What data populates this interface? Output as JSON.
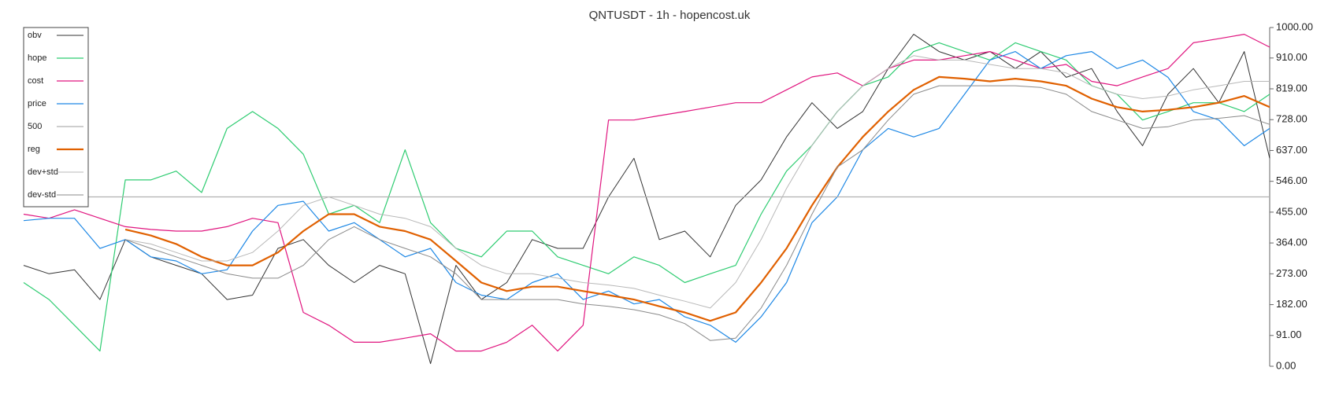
{
  "chart_data": {
    "type": "line",
    "title": "QNTUSDT - 1h - hopencost.uk",
    "ylim": [
      0,
      1000
    ],
    "yticks": [
      {
        "value": 0,
        "label": "0.00"
      },
      {
        "value": 91,
        "label": "91.00"
      },
      {
        "value": 182,
        "label": "182.00"
      },
      {
        "value": 273,
        "label": "273.00"
      },
      {
        "value": 364,
        "label": "364.00"
      },
      {
        "value": 455,
        "label": "455.00"
      },
      {
        "value": 546,
        "label": "546.00"
      },
      {
        "value": 637,
        "label": "637.00"
      },
      {
        "value": 728,
        "label": "728.00"
      },
      {
        "value": 819,
        "label": "819.00"
      },
      {
        "value": 910,
        "label": "910.00"
      },
      {
        "value": 1000,
        "label": "1000.00"
      }
    ],
    "legend": "upper left",
    "series": [
      {
        "name": "obv",
        "color": "#333333",
        "values": [
          298,
          273,
          285,
          197,
          374,
          323,
          298,
          273,
          197,
          210,
          348,
          374,
          298,
          247,
          298,
          273,
          8,
          298,
          197,
          247,
          374,
          348,
          348,
          500,
          614,
          374,
          399,
          323,
          475,
          550,
          677,
          778,
          702,
          752,
          879,
          980,
          929,
          904,
          929,
          879,
          929,
          853,
          879,
          752,
          651,
          803,
          879,
          778,
          929,
          614
        ]
      },
      {
        "name": "hope",
        "color": "#2ecc71",
        "values": [
          247,
          197,
          121,
          45,
          550,
          550,
          576,
          513,
          702,
          752,
          702,
          626,
          449,
          475,
          424,
          639,
          424,
          348,
          323,
          399,
          399,
          323,
          298,
          273,
          323,
          298,
          247,
          273,
          298,
          449,
          576,
          652,
          752,
          828,
          854,
          929,
          955,
          929,
          904,
          955,
          929,
          904,
          828,
          803,
          727,
          752,
          778,
          778,
          752,
          803
        ]
      },
      {
        "name": "cost",
        "color": "#e0157f",
        "values": [
          449,
          437,
          462,
          437,
          412,
          404,
          399,
          399,
          412,
          437,
          424,
          159,
          121,
          71,
          71,
          83,
          96,
          45,
          45,
          71,
          121,
          45,
          121,
          727,
          727,
          740,
          752,
          765,
          778,
          778,
          816,
          854,
          866,
          828,
          879,
          904,
          904,
          917,
          929,
          904,
          879,
          891,
          841,
          828,
          854,
          879,
          955,
          967,
          980,
          942
        ]
      },
      {
        "name": "price",
        "color": "#1e88e5",
        "values": [
          430,
          437,
          437,
          348,
          374,
          323,
          311,
          273,
          285,
          399,
          475,
          487,
          399,
          424,
          374,
          323,
          348,
          247,
          210,
          197,
          247,
          273,
          197,
          222,
          184,
          197,
          146,
          121,
          71,
          146,
          247,
          424,
          500,
          639,
          702,
          677,
          702,
          803,
          904,
          929,
          879,
          917,
          929,
          879,
          904,
          853,
          752,
          727,
          651,
          702
        ]
      },
      {
        "name": "500",
        "color": "#b0b0b0",
        "values": [
          500,
          500,
          500,
          500,
          500,
          500,
          500,
          500,
          500,
          500,
          500,
          500,
          500,
          500,
          500,
          500,
          500,
          500,
          500,
          500,
          500,
          500,
          500,
          500,
          500,
          500,
          500,
          500,
          500,
          500,
          500,
          500,
          500,
          500,
          500,
          500,
          500,
          500,
          500,
          500,
          500,
          500,
          500,
          500,
          500,
          500,
          500,
          500,
          500,
          500
        ]
      },
      {
        "name": "reg",
        "color": "#e06000",
        "values": [
          null,
          null,
          null,
          null,
          404,
          386,
          361,
          323,
          298,
          298,
          336,
          399,
          449,
          449,
          412,
          399,
          374,
          311,
          247,
          222,
          235,
          235,
          222,
          210,
          197,
          177,
          159,
          134,
          159,
          247,
          348,
          475,
          588,
          677,
          752,
          816,
          854,
          849,
          841,
          849,
          841,
          828,
          790,
          765,
          752,
          757,
          765,
          778,
          798,
          765
        ]
      },
      {
        "name": "dev+std",
        "color": "#b8b8b8",
        "values": [
          null,
          null,
          null,
          null,
          374,
          361,
          336,
          311,
          311,
          336,
          399,
          475,
          500,
          475,
          449,
          437,
          412,
          348,
          298,
          273,
          273,
          260,
          247,
          240,
          230,
          210,
          192,
          172,
          247,
          374,
          525,
          652,
          752,
          828,
          879,
          917,
          904,
          904,
          891,
          879,
          879,
          866,
          828,
          803,
          790,
          798,
          816,
          828,
          841,
          841
        ]
      },
      {
        "name": "dev-std",
        "color": "#8a8a8a",
        "values": [
          null,
          null,
          null,
          null,
          374,
          348,
          323,
          298,
          273,
          260,
          260,
          298,
          374,
          412,
          374,
          348,
          323,
          273,
          197,
          197,
          197,
          197,
          184,
          177,
          167,
          152,
          126,
          76,
          83,
          172,
          298,
          449,
          588,
          639,
          727,
          803,
          828,
          828,
          828,
          828,
          823,
          803,
          752,
          727,
          702,
          707,
          727,
          732,
          740,
          714
        ]
      }
    ]
  }
}
